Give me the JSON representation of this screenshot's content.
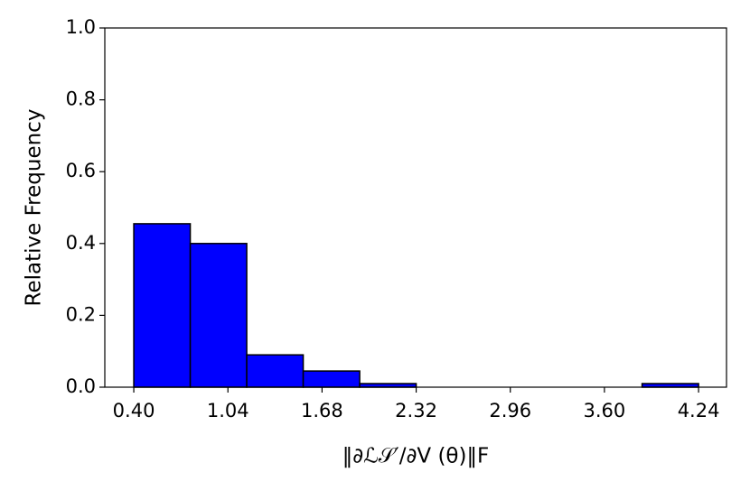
{
  "chart_data": {
    "type": "histogram",
    "xlabel": "‖∂ℒ𝒮′/∂V (θ)‖F",
    "ylabel": "Relative Frequency",
    "bins": [
      0.4,
      0.784,
      1.168,
      1.552,
      1.936,
      2.32,
      2.704,
      3.088,
      3.472,
      3.856,
      4.24
    ],
    "values": [
      0.455,
      0.4,
      0.09,
      0.045,
      0.01,
      0,
      0,
      0,
      0,
      0.01
    ],
    "color": "#0000ff",
    "edgecolor": "#000000",
    "xlim": [
      0.203,
      4.43
    ],
    "ylim": [
      0,
      1.0
    ],
    "xticks": [
      {
        "value": 0.4,
        "label": "0.40"
      },
      1.04,
      1.68,
      2.32,
      2.96,
      {
        "value": 3.6,
        "label": "3.60"
      },
      4.24
    ],
    "yticks": [
      {
        "value": 0.0,
        "label": "0.0"
      },
      0.2,
      0.4,
      0.6,
      0.8,
      {
        "value": 1.0,
        "label": "1.0"
      }
    ]
  }
}
